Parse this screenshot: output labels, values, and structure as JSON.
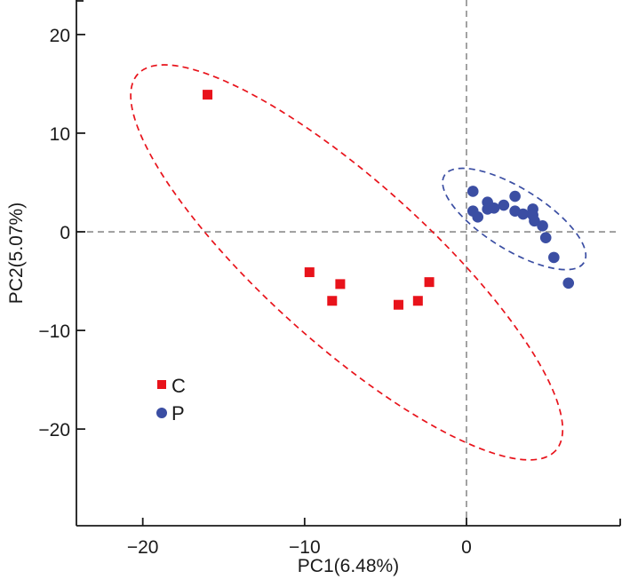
{
  "chart_data": {
    "type": "scatter",
    "title": "",
    "xlabel": "PC1(6.48%)",
    "ylabel": "PC2(5.07%)",
    "xlim": [
      -24.1,
      9.5
    ],
    "ylim": [
      -29.8,
      23.5
    ],
    "xticks": [
      -20,
      -10,
      0
    ],
    "xtick_labels": [
      "−20",
      "−10",
      "0"
    ],
    "yticks": [
      20,
      10,
      0,
      -10,
      -20
    ],
    "ytick_labels": [
      "20",
      "10",
      "0",
      "−10",
      "−20"
    ],
    "grid": false,
    "reference_lines": {
      "x": 0,
      "y": 0,
      "style": "dashed",
      "color": "#8c8c8c"
    },
    "legend": {
      "placement": "bottom-left"
    },
    "series": [
      {
        "name": "C",
        "marker": "square",
        "color": "#e8131b",
        "points": [
          {
            "x": -16.0,
            "y": 13.9
          },
          {
            "x": -9.7,
            "y": -4.1
          },
          {
            "x": -7.8,
            "y": -5.3
          },
          {
            "x": -8.3,
            "y": -7.0
          },
          {
            "x": -4.2,
            "y": -7.4
          },
          {
            "x": -3.0,
            "y": -7.0
          },
          {
            "x": -2.3,
            "y": -5.1
          }
        ],
        "ellipse": {
          "cx": -7.4,
          "cy": -3.1,
          "semi_major": 20.5,
          "semi_minor": 6.2,
          "angle_deg": -42
        }
      },
      {
        "name": "P",
        "marker": "circle",
        "color": "#3b4ea3",
        "points": [
          {
            "x": 0.4,
            "y": 4.1
          },
          {
            "x": 0.4,
            "y": 2.1
          },
          {
            "x": 0.7,
            "y": 1.5
          },
          {
            "x": 1.3,
            "y": 3.0
          },
          {
            "x": 1.3,
            "y": 2.3
          },
          {
            "x": 1.7,
            "y": 2.4
          },
          {
            "x": 2.3,
            "y": 2.7
          },
          {
            "x": 3.0,
            "y": 3.6
          },
          {
            "x": 3.0,
            "y": 2.1
          },
          {
            "x": 3.5,
            "y": 1.8
          },
          {
            "x": 4.1,
            "y": 2.3
          },
          {
            "x": 4.1,
            "y": 1.7
          },
          {
            "x": 4.2,
            "y": 1.1
          },
          {
            "x": 4.7,
            "y": 0.6
          },
          {
            "x": 4.9,
            "y": -0.6
          },
          {
            "x": 5.4,
            "y": -2.6
          },
          {
            "x": 6.3,
            "y": -5.2
          }
        ],
        "ellipse": {
          "cx": 2.95,
          "cy": 1.3,
          "semi_major": 5.6,
          "semi_minor": 2.55,
          "angle_deg": -32
        }
      }
    ]
  }
}
